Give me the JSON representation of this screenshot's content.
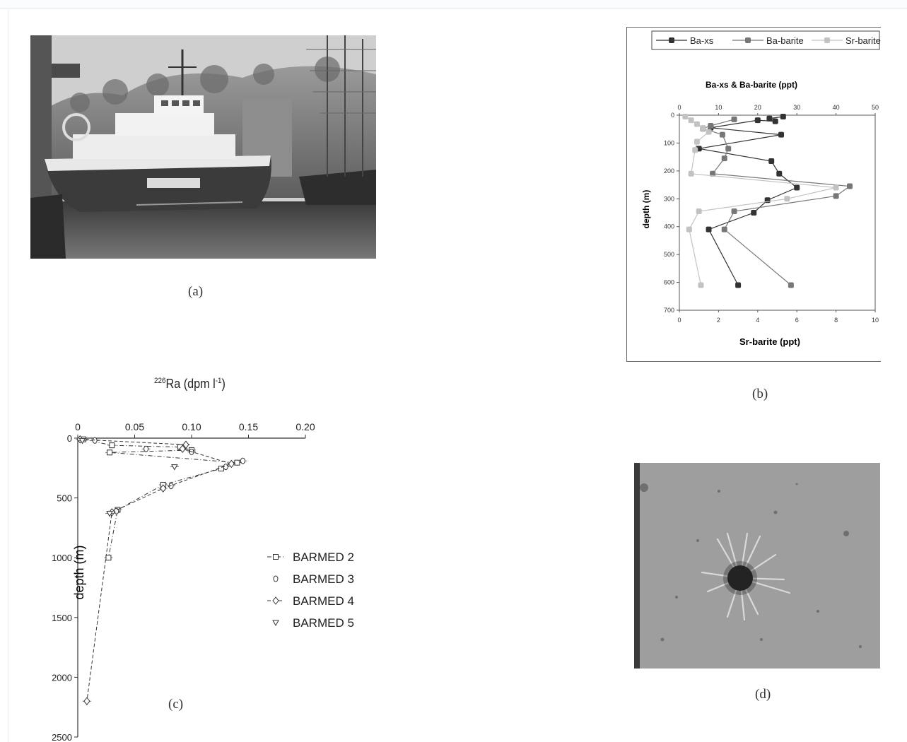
{
  "panels": {
    "a": {
      "caption": "(a)"
    },
    "b": {
      "caption": "(b)",
      "chart_data": {
        "type": "line",
        "title": "Ba-xs & Ba-barite (ppt)",
        "xlabel": "Sr-barite (ppt)",
        "ylabel": "depth (m)",
        "x_top_ticks": [
          "0",
          "10",
          "20",
          "30",
          "40",
          "50"
        ],
        "x_bottom_ticks": [
          "0",
          "2",
          "4",
          "6",
          "8",
          "10"
        ],
        "y_ticks": [
          "0",
          "100",
          "200",
          "300",
          "400",
          "500",
          "600",
          "700"
        ],
        "xlim_top": [
          0,
          50
        ],
        "xlim_bottom": [
          0,
          10
        ],
        "ylim": [
          0,
          700
        ],
        "legend_position": "top",
        "series": [
          {
            "name": "Ba-xs",
            "axis": "top",
            "color": "#333333",
            "points": [
              [
                26.5,
                5
              ],
              [
                23,
                12
              ],
              [
                24.5,
                22
              ],
              [
                20,
                18
              ],
              [
                8,
                45
              ],
              [
                26,
                70
              ],
              [
                5,
                120
              ],
              [
                23.5,
                165
              ],
              [
                25.5,
                210
              ],
              [
                30,
                260
              ],
              [
                22.5,
                305
              ],
              [
                19,
                350
              ],
              [
                7.5,
                410
              ],
              [
                15,
                610
              ]
            ]
          },
          {
            "name": "Ba-barite",
            "axis": "top",
            "color": "#777777",
            "points": [
              [
                14,
                15
              ],
              [
                8,
                38
              ],
              [
                6,
                48
              ],
              [
                11,
                70
              ],
              [
                12.5,
                120
              ],
              [
                11.5,
                155
              ],
              [
                8.5,
                210
              ],
              [
                43.5,
                255
              ],
              [
                40,
                290
              ],
              [
                14,
                345
              ],
              [
                11.5,
                410
              ],
              [
                28.5,
                610
              ]
            ]
          },
          {
            "name": "Sr-barite",
            "axis": "bottom",
            "color": "#c2c2c2",
            "points": [
              [
                0.3,
                5
              ],
              [
                0.6,
                18
              ],
              [
                0.9,
                32
              ],
              [
                1.2,
                46
              ],
              [
                1.5,
                60
              ],
              [
                0.9,
                95
              ],
              [
                0.8,
                125
              ],
              [
                0.6,
                210
              ],
              [
                8.0,
                260
              ],
              [
                5.5,
                300
              ],
              [
                1.0,
                345
              ],
              [
                0.5,
                410
              ],
              [
                1.1,
                610
              ]
            ]
          }
        ]
      }
    },
    "c": {
      "caption": "(c)",
      "chart_data": {
        "type": "scatter",
        "xlabel_main": "Ra (dpm l",
        "xlabel_isotope": "226",
        "xlabel_exponent": "-1",
        "xlabel_close": ")",
        "ylabel": "depth (m)",
        "x_ticks": [
          "0",
          "0.05",
          "0.10",
          "0.15",
          "0.20"
        ],
        "y_ticks": [
          "0",
          "500",
          "1000",
          "1500",
          "2000",
          "2500"
        ],
        "xlim": [
          0,
          0.2
        ],
        "ylim": [
          0,
          2500
        ],
        "series": [
          {
            "name": "BARMED 2",
            "marker": "square",
            "line": "dash-dot",
            "points": [
              [
                0.005,
                10
              ],
              [
                0.03,
                60
              ],
              [
                0.09,
                75
              ],
              [
                0.1,
                100
              ],
              [
                0.028,
                120
              ],
              [
                0.14,
                205
              ],
              [
                0.126,
                255
              ],
              [
                0.075,
                390
              ],
              [
                0.035,
                600
              ],
              [
                0.027,
                1000
              ]
            ]
          },
          {
            "name": "BARMED 3",
            "marker": "circle",
            "line": "none",
            "points": [
              [
                0.015,
                20
              ],
              [
                0.06,
                90
              ],
              [
                0.1,
                115
              ],
              [
                0.145,
                190
              ],
              [
                0.13,
                240
              ],
              [
                0.082,
                400
              ],
              [
                0.034,
                610
              ]
            ]
          },
          {
            "name": "BARMED 4",
            "marker": "diamond",
            "line": "dashed",
            "points": [
              [
                0.002,
                10
              ],
              [
                0.095,
                55
              ],
              [
                0.092,
                90
              ],
              [
                0.135,
                215
              ],
              [
                0.075,
                420
              ],
              [
                0.03,
                620
              ],
              [
                0.008,
                2200
              ]
            ]
          },
          {
            "name": "BARMED 5",
            "marker": "triangle-down",
            "line": "none",
            "points": [
              [
                0.004,
                20
              ],
              [
                0.085,
                240
              ],
              [
                0.028,
                630
              ]
            ]
          }
        ]
      }
    },
    "d": {
      "caption": "(d)"
    }
  }
}
